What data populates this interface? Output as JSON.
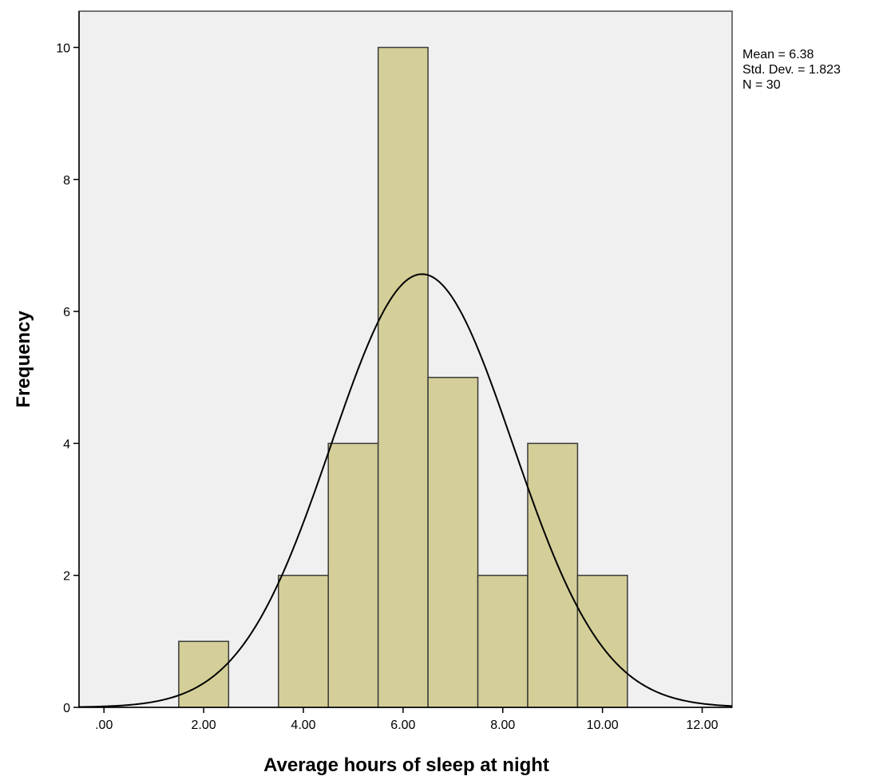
{
  "chart_data": {
    "type": "bar",
    "subtype": "histogram",
    "xlabel": "Average hours of sleep at night",
    "ylabel": "Frequency",
    "bins": [
      {
        "start": 1.5,
        "end": 2.5,
        "count": 1
      },
      {
        "start": 3.5,
        "end": 4.5,
        "count": 2
      },
      {
        "start": 4.5,
        "end": 5.5,
        "count": 4
      },
      {
        "start": 5.5,
        "end": 6.5,
        "count": 10
      },
      {
        "start": 6.5,
        "end": 7.5,
        "count": 5
      },
      {
        "start": 7.5,
        "end": 8.5,
        "count": 2
      },
      {
        "start": 8.5,
        "end": 9.5,
        "count": 4
      },
      {
        "start": 9.5,
        "end": 10.5,
        "count": 2
      }
    ],
    "xlim": [
      -0.5,
      12.6
    ],
    "ylim": [
      0,
      10.55
    ],
    "xticks": [
      0,
      2,
      4,
      6,
      8,
      10,
      12
    ],
    "xtick_labels": [
      ".00",
      "2.00",
      "4.00",
      "6.00",
      "8.00",
      "10.00",
      "12.00"
    ],
    "yticks": [
      0,
      2,
      4,
      6,
      8,
      10
    ],
    "ytick_labels": [
      "0",
      "2",
      "4",
      "6",
      "8",
      "10"
    ],
    "normal_curve": {
      "mean": 6.38,
      "sd": 1.823,
      "n": 30,
      "bin_width": 1
    },
    "stats": [
      "Mean = 6.38",
      "Std. Dev. = 1.823",
      "N = 30"
    ],
    "grid": false,
    "colors": {
      "bar_fill": "#d4cf98",
      "bar_stroke": "#3a3a3a",
      "plot_bg": "#f0f0f0",
      "curve": "#000000"
    }
  }
}
